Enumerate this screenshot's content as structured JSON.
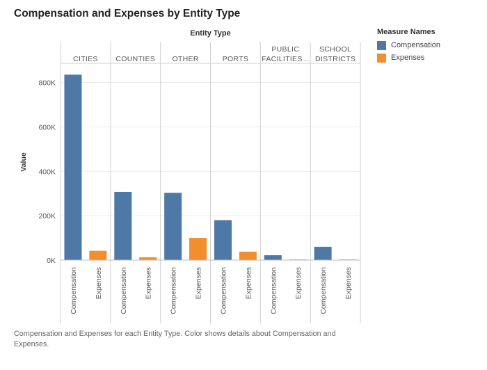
{
  "title": "Compensation and Expenses by Entity Type",
  "caption": "Compensation and Expenses for each Entity Type.  Color shows details about Compensation and Expenses.",
  "legend": {
    "title": "Measure Names",
    "items": [
      {
        "label": "Compensation",
        "color": "#4e79a7"
      },
      {
        "label": "Expenses",
        "color": "#f28e2b"
      }
    ]
  },
  "chart_data": {
    "type": "bar",
    "column_header": "Entity Type",
    "ylabel": "Value",
    "ylim": [
      0,
      880000
    ],
    "yticks": [
      0,
      200000,
      400000,
      600000,
      800000
    ],
    "ytick_labels": [
      "0K",
      "200K",
      "400K",
      "600K",
      "800K"
    ],
    "grid": true,
    "categories": [
      {
        "label_lines": [
          "CITIES"
        ]
      },
      {
        "label_lines": [
          "COUNTIES"
        ]
      },
      {
        "label_lines": [
          "OTHER"
        ]
      },
      {
        "label_lines": [
          "PORTS"
        ]
      },
      {
        "label_lines": [
          "PUBLIC",
          "FACILITIES .."
        ]
      },
      {
        "label_lines": [
          "SCHOOL",
          "DISTRICTS"
        ]
      }
    ],
    "series": [
      {
        "name": "Compensation",
        "color": "#4e79a7",
        "values": [
          835000,
          307000,
          303000,
          180000,
          22000,
          60000
        ]
      },
      {
        "name": "Expenses",
        "color": "#f28e2b",
        "values": [
          42000,
          13000,
          100000,
          38000,
          1000,
          1000
        ]
      }
    ]
  }
}
